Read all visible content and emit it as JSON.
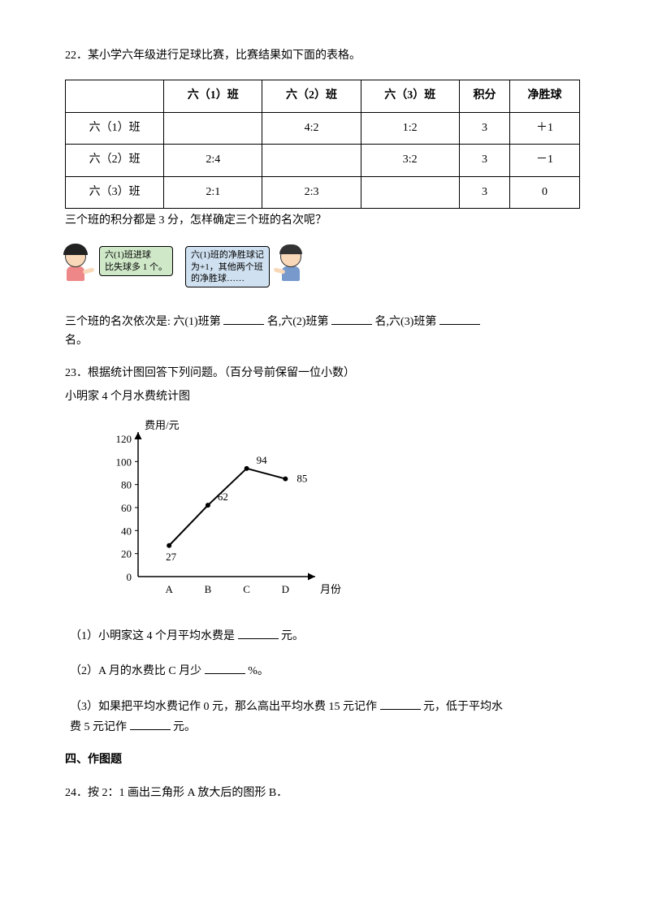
{
  "q22": {
    "title": "22．某小学六年级进行足球比赛，比赛结果如下面的表格。",
    "table": {
      "headers": [
        "",
        "六（1）班",
        "六（2）班",
        "六（3）班",
        "积分",
        "净胜球"
      ],
      "rows": [
        [
          "六（1）班",
          "",
          "4:2",
          "1:2",
          "3",
          "＋1"
        ],
        [
          "六（2）班",
          "2:4",
          "",
          "3:2",
          "3",
          "－1"
        ],
        [
          "六（3）班",
          "2:1",
          "2:3",
          "",
          "3",
          "0"
        ]
      ]
    },
    "prompt": "三个班的积分都是 3 分，怎样确定三个班的名次呢？",
    "bubble1": "六(1)班进球\n比失球多 1 个。",
    "bubble2": "六(1)班的净胜球记\n为+1，其他两个班\n的净胜球……",
    "fill": {
      "pre": "三个班的名次依次是: 六(1)班第",
      "mid1": "名,六(2)班第",
      "mid2": "名,六(3)班第",
      "end": "名。"
    }
  },
  "q23": {
    "title": "23．根据统计图回答下列问题。（百分号前保留一位小数）",
    "chart_title": "小明家 4 个月水费统计图",
    "chart": {
      "ylabel": "费用/元",
      "xlabel": "月份",
      "ylim": [
        0,
        120
      ],
      "ytick_step": 20,
      "yticks": [
        "0",
        "20",
        "40",
        "60",
        "80",
        "100",
        "120"
      ],
      "categories": [
        "A",
        "B",
        "C",
        "D"
      ],
      "values": [
        27,
        62,
        94,
        85
      ],
      "line_color": "#000000",
      "axis_color": "#000000",
      "background_color": "#ffffff",
      "point_color": "#000000",
      "label_fontsize": 13
    },
    "sub1": {
      "pre": "（1）小明家这 4 个月平均水费是",
      "post": "元。"
    },
    "sub2": {
      "pre": "（2）A 月的水费比 C 月少",
      "post": "%。"
    },
    "sub3": {
      "pre": "（3）如果把平均水费记作 0 元，那么高出平均水费 15 元记作",
      "mid": "元，低于平均水",
      "line2_pre": "费 5 元记作",
      "line2_post": "元。"
    }
  },
  "section4": "四、作图题",
  "q24": "24．按 2：1 画出三角形 A 放大后的图形 B．"
}
